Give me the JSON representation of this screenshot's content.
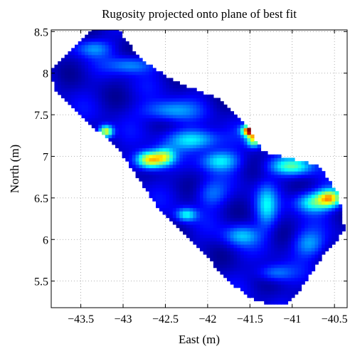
{
  "chart_data": {
    "type": "heatmap",
    "title": "Rugosity projected onto plane of best fit",
    "xlabel": "East (m)",
    "ylabel": "North (m)",
    "xlim": [
      -43.85,
      -40.35
    ],
    "ylim": [
      5.18,
      8.52
    ],
    "x_ticks": [
      -43.5,
      -43,
      -42.5,
      -42,
      -41.5,
      -41,
      -40.5
    ],
    "x_tick_labels": [
      "−43.5",
      "−43",
      "−42.5",
      "−42",
      "−41.5",
      "−41",
      "−40.5"
    ],
    "y_ticks": [
      5.5,
      6,
      6.5,
      7,
      7.5,
      8,
      8.5
    ],
    "y_tick_labels": [
      "5.5",
      "6",
      "6.5",
      "7",
      "7.5",
      "8",
      "8.5"
    ],
    "grid": true,
    "grid_style": "dotted",
    "colormap": "jet",
    "data_region_outline": [
      [
        -43.38,
        8.52
      ],
      [
        -43.05,
        8.52
      ],
      [
        -42.78,
        8.15
      ],
      [
        -42.35,
        7.88
      ],
      [
        -41.85,
        7.68
      ],
      [
        -41.52,
        7.35
      ],
      [
        -41.35,
        7.05
      ],
      [
        -41.05,
        6.98
      ],
      [
        -40.68,
        6.88
      ],
      [
        -40.45,
        6.55
      ],
      [
        -40.38,
        6.1
      ],
      [
        -40.6,
        5.85
      ],
      [
        -40.75,
        5.62
      ],
      [
        -40.92,
        5.38
      ],
      [
        -41.05,
        5.22
      ],
      [
        -41.3,
        5.22
      ],
      [
        -41.5,
        5.3
      ],
      [
        -41.75,
        5.5
      ],
      [
        -42.02,
        5.8
      ],
      [
        -42.3,
        6.08
      ],
      [
        -42.55,
        6.32
      ],
      [
        -42.78,
        6.68
      ],
      [
        -43.1,
        7.15
      ],
      [
        -43.35,
        7.35
      ],
      [
        -43.6,
        7.6
      ],
      [
        -43.82,
        7.8
      ],
      [
        -43.85,
        8.05
      ],
      [
        -43.55,
        8.35
      ]
    ],
    "field_base_level": 0.08,
    "hotspots": [
      {
        "x": -42.68,
        "y": 6.96,
        "rx": 0.16,
        "ry": 0.1,
        "level": 0.62
      },
      {
        "x": -42.5,
        "y": 7.0,
        "rx": 0.12,
        "ry": 0.1,
        "level": 0.35
      },
      {
        "x": -41.49,
        "y": 7.31,
        "rx": 0.09,
        "ry": 0.06,
        "level": 0.95
      },
      {
        "x": -41.45,
        "y": 7.2,
        "rx": 0.08,
        "ry": 0.08,
        "level": 0.5
      },
      {
        "x": -43.2,
        "y": 7.3,
        "rx": 0.08,
        "ry": 0.07,
        "level": 0.55
      },
      {
        "x": -40.55,
        "y": 6.5,
        "rx": 0.14,
        "ry": 0.1,
        "level": 0.55
      },
      {
        "x": -40.75,
        "y": 6.45,
        "rx": 0.2,
        "ry": 0.12,
        "level": 0.35
      },
      {
        "x": -41.0,
        "y": 6.88,
        "rx": 0.25,
        "ry": 0.1,
        "level": 0.35
      },
      {
        "x": -42.15,
        "y": 7.2,
        "rx": 0.3,
        "ry": 0.12,
        "level": 0.3
      },
      {
        "x": -41.85,
        "y": 6.95,
        "rx": 0.22,
        "ry": 0.12,
        "level": 0.28
      },
      {
        "x": -42.45,
        "y": 7.55,
        "rx": 0.3,
        "ry": 0.12,
        "level": 0.22
      },
      {
        "x": -42.9,
        "y": 8.1,
        "rx": 0.25,
        "ry": 0.1,
        "level": 0.2
      },
      {
        "x": -43.35,
        "y": 8.3,
        "rx": 0.2,
        "ry": 0.1,
        "level": 0.18
      },
      {
        "x": -41.3,
        "y": 6.4,
        "rx": 0.12,
        "ry": 0.25,
        "level": 0.25
      },
      {
        "x": -41.6,
        "y": 6.05,
        "rx": 0.2,
        "ry": 0.12,
        "level": 0.22
      },
      {
        "x": -41.2,
        "y": 5.6,
        "rx": 0.2,
        "ry": 0.1,
        "level": 0.18
      },
      {
        "x": -40.8,
        "y": 5.95,
        "rx": 0.18,
        "ry": 0.15,
        "level": 0.2
      },
      {
        "x": -42.25,
        "y": 6.3,
        "rx": 0.12,
        "ry": 0.08,
        "level": 0.3
      },
      {
        "x": -41.95,
        "y": 6.55,
        "rx": 0.18,
        "ry": 0.15,
        "level": 0.15
      }
    ]
  }
}
